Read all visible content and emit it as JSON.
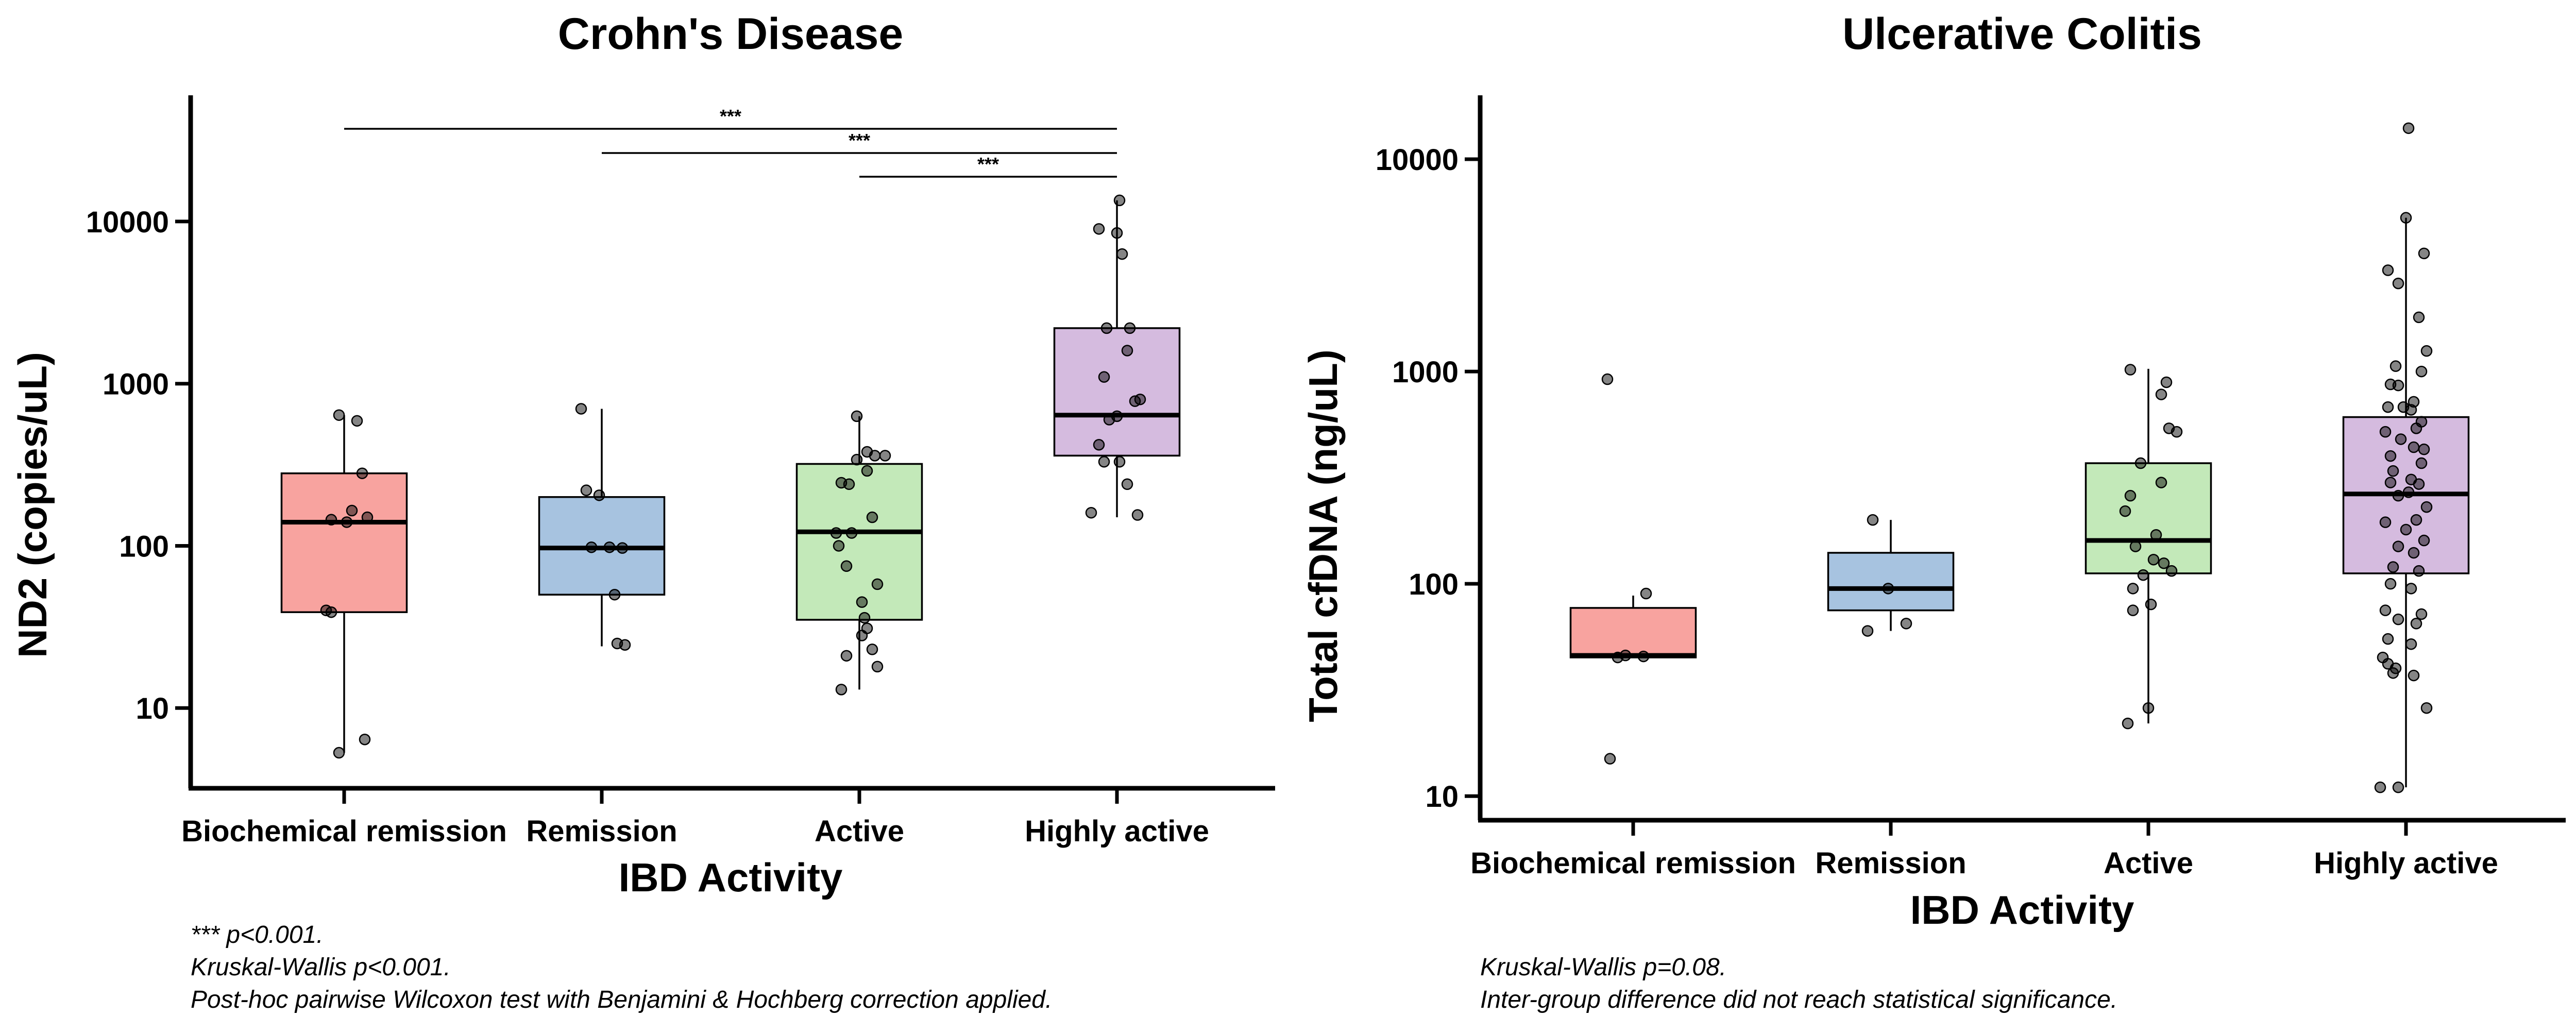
{
  "chart_data": [
    {
      "type": "box",
      "title": "Crohn's Disease",
      "xlabel": "IBD Activity",
      "ylabel": "ND2 (copies/uL)",
      "yscale": "log",
      "ylim": [
        3.2,
        60000
      ],
      "yticks": [
        10,
        100,
        1000,
        10000
      ],
      "ytick_labels": [
        "10",
        "100",
        "1000",
        "10000"
      ],
      "categories": [
        "Biochemical remission",
        "Remission",
        "Active",
        "Highly active"
      ],
      "colors": [
        "#f8a39f",
        "#a7c3e0",
        "#c3e9b9",
        "#d5bbdf"
      ],
      "boxes": [
        {
          "q1": 39,
          "median": 140,
          "q3": 280,
          "whisker_low": 5.3,
          "whisker_high": 640
        },
        {
          "q1": 50,
          "median": 97,
          "q3": 200,
          "whisker_low": 24,
          "whisker_high": 700
        },
        {
          "q1": 35,
          "median": 122,
          "q3": 320,
          "whisker_low": 13,
          "whisker_high": 630
        },
        {
          "q1": 360,
          "median": 640,
          "q3": 2200,
          "whisker_low": 150,
          "whisker_high": 13500
        }
      ],
      "points": [
        [
          [
            -0.02,
            640
          ],
          [
            0.05,
            590
          ],
          [
            0.07,
            280
          ],
          [
            0.03,
            165
          ],
          [
            -0.05,
            145
          ],
          [
            0.01,
            140
          ],
          [
            0.09,
            150
          ],
          [
            -0.07,
            40
          ],
          [
            -0.05,
            39
          ],
          [
            -0.02,
            5.3
          ],
          [
            0.08,
            6.4
          ]
        ],
        [
          [
            -0.08,
            700
          ],
          [
            -0.06,
            220
          ],
          [
            -0.01,
            205
          ],
          [
            -0.04,
            98
          ],
          [
            0.03,
            98
          ],
          [
            0.08,
            97
          ],
          [
            0.05,
            50
          ],
          [
            0.06,
            25
          ],
          [
            0.09,
            24.5
          ]
        ],
        [
          [
            -0.01,
            630
          ],
          [
            0.03,
            380
          ],
          [
            0.06,
            360
          ],
          [
            0.1,
            360
          ],
          [
            -0.01,
            340
          ],
          [
            0.03,
            290
          ],
          [
            -0.07,
            245
          ],
          [
            -0.04,
            240
          ],
          [
            -0.09,
            120
          ],
          [
            0.05,
            150
          ],
          [
            -0.08,
            100
          ],
          [
            -0.03,
            120
          ],
          [
            0.07,
            58
          ],
          [
            -0.05,
            75
          ],
          [
            0.01,
            45
          ],
          [
            0.02,
            36
          ],
          [
            0.03,
            31
          ],
          [
            0.01,
            28
          ],
          [
            -0.05,
            21
          ],
          [
            0.05,
            23
          ],
          [
            0.07,
            18
          ],
          [
            -0.07,
            13
          ]
        ],
        [
          [
            0.01,
            13500
          ],
          [
            -0.07,
            9000
          ],
          [
            0.0,
            8500
          ],
          [
            0.02,
            6300
          ],
          [
            -0.04,
            2200
          ],
          [
            0.05,
            2200
          ],
          [
            0.04,
            1600
          ],
          [
            -0.05,
            1100
          ],
          [
            0.09,
            800
          ],
          [
            0.07,
            780
          ],
          [
            -0.03,
            600
          ],
          [
            0.0,
            630
          ],
          [
            -0.07,
            420
          ],
          [
            0.01,
            330
          ],
          [
            -0.05,
            330
          ],
          [
            0.04,
            240
          ],
          [
            -0.1,
            160
          ],
          [
            0.08,
            155
          ]
        ]
      ],
      "significance": [
        {
          "from": 0,
          "to": 3,
          "label": "***"
        },
        {
          "from": 1,
          "to": 3,
          "label": "***"
        },
        {
          "from": 2,
          "to": 3,
          "label": "***"
        }
      ],
      "notes": [
        "*** p<0.001.",
        "Kruskal-Wallis p<0.001.",
        "Post-hoc pairwise Wilcoxon test with Benjamini & Hochberg correction applied."
      ]
    },
    {
      "type": "box",
      "title": "Ulcerative Colitis",
      "xlabel": "IBD Activity",
      "ylabel": "Total cfDNA (ng/uL)",
      "yscale": "log",
      "ylim": [
        7.7,
        20000
      ],
      "yticks": [
        10,
        100,
        1000,
        10000
      ],
      "ytick_labels": [
        "10",
        "100",
        "1000",
        "10000"
      ],
      "categories": [
        "Biochemical remission",
        "Remission",
        "Active",
        "Highly active"
      ],
      "colors": [
        "#f8a39f",
        "#a7c3e0",
        "#c3e9b9",
        "#d5bbdf"
      ],
      "boxes": [
        {
          "q1": 45,
          "median": 46,
          "q3": 77,
          "whisker_low": 45,
          "whisker_high": 88
        },
        {
          "q1": 75,
          "median": 95,
          "q3": 140,
          "whisker_low": 60,
          "whisker_high": 200
        },
        {
          "q1": 112,
          "median": 160,
          "q3": 370,
          "whisker_low": 22,
          "whisker_high": 1030
        },
        {
          "q1": 112,
          "median": 265,
          "q3": 610,
          "whisker_low": 11,
          "whisker_high": 5300
        }
      ],
      "points": [
        [
          [
            -0.1,
            920
          ],
          [
            0.05,
            90
          ],
          [
            -0.03,
            46
          ],
          [
            0.04,
            45.5
          ],
          [
            -0.06,
            45
          ],
          [
            -0.09,
            15
          ]
        ],
        [
          [
            -0.07,
            200
          ],
          [
            -0.01,
            95
          ],
          [
            -0.09,
            60
          ],
          [
            0.06,
            65
          ]
        ],
        [
          [
            -0.07,
            1020
          ],
          [
            0.07,
            890
          ],
          [
            0.05,
            780
          ],
          [
            0.11,
            520
          ],
          [
            0.08,
            540
          ],
          [
            -0.03,
            370
          ],
          [
            -0.07,
            260
          ],
          [
            0.05,
            300
          ],
          [
            -0.09,
            220
          ],
          [
            0.03,
            170
          ],
          [
            -0.05,
            150
          ],
          [
            0.02,
            130
          ],
          [
            0.06,
            125
          ],
          [
            0.09,
            115
          ],
          [
            -0.02,
            110
          ],
          [
            -0.06,
            95
          ],
          [
            0.01,
            80
          ],
          [
            -0.06,
            75
          ],
          [
            0.0,
            26
          ],
          [
            -0.08,
            22
          ]
        ],
        [
          [
            0.01,
            14000
          ],
          [
            0.0,
            5300
          ],
          [
            0.07,
            3600
          ],
          [
            -0.07,
            3000
          ],
          [
            -0.03,
            2600
          ],
          [
            0.05,
            1800
          ],
          [
            0.08,
            1250
          ],
          [
            -0.04,
            1060
          ],
          [
            0.06,
            1000
          ],
          [
            -0.06,
            870
          ],
          [
            -0.03,
            860
          ],
          [
            0.03,
            720
          ],
          [
            -0.01,
            680
          ],
          [
            -0.07,
            680
          ],
          [
            0.02,
            660
          ],
          [
            0.06,
            580
          ],
          [
            0.04,
            540
          ],
          [
            -0.08,
            520
          ],
          [
            -0.02,
            480
          ],
          [
            0.03,
            440
          ],
          [
            0.07,
            430
          ],
          [
            -0.06,
            400
          ],
          [
            0.06,
            370
          ],
          [
            -0.05,
            340
          ],
          [
            0.02,
            310
          ],
          [
            -0.06,
            300
          ],
          [
            0.05,
            295
          ],
          [
            0.01,
            270
          ],
          [
            -0.03,
            260
          ],
          [
            0.08,
            230
          ],
          [
            0.04,
            200
          ],
          [
            -0.08,
            195
          ],
          [
            0.0,
            180
          ],
          [
            0.07,
            160
          ],
          [
            -0.03,
            150
          ],
          [
            0.03,
            140
          ],
          [
            -0.05,
            120
          ],
          [
            0.05,
            115
          ],
          [
            -0.06,
            100
          ],
          [
            0.02,
            95
          ],
          [
            -0.08,
            75
          ],
          [
            0.06,
            72
          ],
          [
            -0.03,
            68
          ],
          [
            0.04,
            65
          ],
          [
            -0.07,
            55
          ],
          [
            0.02,
            52
          ],
          [
            -0.09,
            45
          ],
          [
            -0.07,
            42
          ],
          [
            -0.04,
            40
          ],
          [
            -0.05,
            38
          ],
          [
            0.03,
            37
          ],
          [
            0.08,
            26
          ],
          [
            -0.1,
            11
          ],
          [
            -0.03,
            11
          ]
        ]
      ],
      "significance": [],
      "notes": [
        "Kruskal-Wallis p=0.08.",
        "Inter-group difference did not reach statistical significance."
      ]
    }
  ]
}
